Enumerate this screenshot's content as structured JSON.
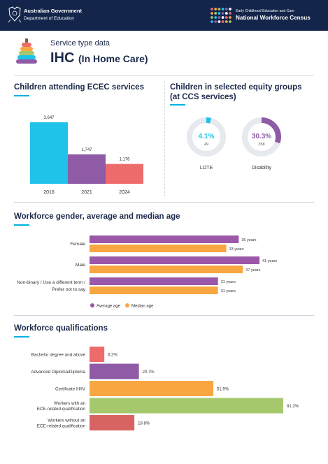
{
  "header": {
    "gov_title": "Australian Government",
    "gov_department": "Department of Education",
    "census_subtitle": "Early Childhood Education and Care",
    "census_title": "National Workforce Census"
  },
  "page": {
    "service_type_label": "Service type data",
    "title_abbr": "IHC",
    "title_full": "(In Home Care)"
  },
  "sections": {
    "attendance_title": "Children attending ECEC services",
    "equity_title_line1": "Children in selected equity groups",
    "equity_title_line2": "(at CCS services)",
    "workforce_title": "Workforce gender, average and median age",
    "qualifications_title": "Workforce qualifications"
  },
  "colors": {
    "header_bg": "#13254a",
    "accent": "#00b0e0",
    "bar_2016": "#1fc3ea",
    "bar_2021": "#8f5aa6",
    "bar_2024": "#ee6b6b",
    "average_age": "#9b57a8",
    "median_age": "#f8a641",
    "lote": "#1fc3ea",
    "disability": "#8f5aa6",
    "donut_track": "#e6e9ee"
  },
  "chart_data": [
    {
      "type": "bar",
      "categories": [
        "2016",
        "2021",
        "2024"
      ],
      "values": [
        3647,
        1747,
        1176
      ],
      "value_labels": [
        "3,647",
        "1,747",
        "1,176"
      ],
      "title": "Children attending ECEC services",
      "ylim": [
        0,
        3647
      ]
    },
    {
      "type": "pie",
      "title": "Children in selected equity groups (at CCS services)",
      "items": [
        {
          "label": "LOTE",
          "percent": 4.1,
          "percent_label": "4.1%",
          "count_label": "49"
        },
        {
          "label": "Disability",
          "percent": 30.3,
          "percent_label": "30.3%",
          "count_label": "358"
        }
      ]
    },
    {
      "type": "bar",
      "orientation": "horizontal",
      "title": "Workforce gender, average and median age",
      "categories": [
        "Female",
        "Male",
        "Non-binary / Use a different term / Prefer not to say"
      ],
      "series": [
        {
          "name": "Average age",
          "values": [
            36,
            41,
            31
          ],
          "value_labels": [
            "36 years",
            "41 years",
            "31 years"
          ]
        },
        {
          "name": "Median age",
          "values": [
            33,
            37,
            31
          ],
          "value_labels": [
            "33 years",
            "37 years",
            "31 years"
          ]
        }
      ],
      "legend": [
        "Average age",
        "Median age"
      ],
      "legend_position": "bottom",
      "xlim": [
        0,
        41
      ]
    },
    {
      "type": "bar",
      "orientation": "horizontal",
      "title": "Workforce qualifications",
      "categories": [
        "Bachelor degree and above",
        "Advanced Diploma/Diploma",
        "Certificate III/IV",
        "Workers with an ECE-related qualification",
        "Workers without an ECE-related qualification"
      ],
      "values": [
        6.2,
        20.7,
        51.9,
        81.2,
        18.8
      ],
      "value_labels": [
        "6.2%",
        "20.7%",
        "51.9%",
        "81.2%",
        "18.8%"
      ],
      "colors": [
        "#ee6b6b",
        "#8f5aa6",
        "#f8a641",
        "#a6c86c",
        "#d76463"
      ],
      "xlim": [
        0,
        81.2
      ]
    }
  ]
}
